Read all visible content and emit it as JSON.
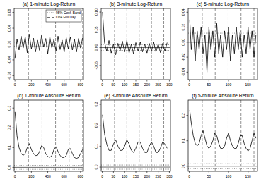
{
  "chart_data": [
    {
      "type": "line",
      "title": "(a) 1-minute Log-Return",
      "color": "#000000",
      "x": [
        1,
        25,
        50,
        75,
        100,
        125,
        150,
        175,
        200,
        225,
        250,
        275,
        300,
        325,
        350,
        375,
        400,
        425,
        450,
        475,
        500,
        525,
        550,
        575,
        600,
        625,
        650,
        675,
        700,
        725,
        750,
        775,
        800,
        825
      ],
      "values": [
        -0.035,
        0.012,
        -0.015,
        0.02,
        -0.01,
        0.018,
        -0.022,
        0.025,
        -0.012,
        0.015,
        -0.02,
        0.01,
        -0.016,
        0.022,
        -0.008,
        0.014,
        -0.024,
        0.018,
        -0.01,
        0.012,
        -0.018,
        0.02,
        -0.014,
        0.01,
        -0.02,
        0.016,
        -0.012,
        0.018,
        -0.015,
        0.012,
        -0.02,
        0.014,
        -0.01,
        0.016
      ],
      "xlim": [
        -10,
        835
      ],
      "ylim": [
        -0.09,
        0.09
      ],
      "xticks": [
        0,
        200,
        400,
        600,
        800
      ],
      "yticks": [
        -0.08,
        -0.04,
        {
          "value": 0,
          "label": "0.00"
        },
        0.04,
        0.08
      ],
      "conf_band": 0.005,
      "day_lines": [
        165,
        330,
        495,
        660,
        825
      ],
      "hline": 0,
      "legend": "top-right",
      "legend_entries": [
        {
          "name": "95% Conf. Band",
          "line_style": "dotted"
        },
        {
          "name": "One Full Day",
          "line_style": "dashed"
        }
      ]
    },
    {
      "type": "line",
      "title": "(b) 3-minute Log-Return",
      "color": "#000000",
      "x": [
        1,
        10,
        20,
        30,
        40,
        50,
        60,
        70,
        80,
        90,
        100,
        110,
        120,
        130,
        140,
        150,
        160,
        170,
        180,
        190,
        200,
        210,
        220,
        230,
        240,
        250,
        260,
        270,
        280,
        290
      ],
      "values": [
        0.1,
        0.015,
        -0.01,
        0.02,
        -0.015,
        0.01,
        -0.02,
        0.012,
        -0.008,
        0.018,
        -0.012,
        0.02,
        -0.015,
        0.01,
        -0.018,
        0.014,
        -0.01,
        0.016,
        -0.012,
        0.01,
        -0.015,
        0.012,
        -0.01,
        0.015,
        -0.012,
        0.01,
        -0.014,
        0.012,
        -0.01,
        0.014
      ],
      "xlim": [
        -5,
        305
      ],
      "ylim": [
        -0.09,
        0.11
      ],
      "xticks": [
        0,
        50,
        100,
        150,
        200,
        250,
        300
      ],
      "yticks": [
        -0.05,
        {
          "value": 0,
          "label": "0.00"
        },
        0.05,
        {
          "value": 0.1,
          "label": "0.10"
        }
      ],
      "conf_band": 0.008,
      "day_lines": [
        55,
        110,
        165,
        220,
        275
      ],
      "hline": 0
    },
    {
      "type": "line",
      "title": "(c) 5-minute Log-Return",
      "color": "#000000",
      "x": [
        1,
        5,
        10,
        15,
        20,
        25,
        30,
        35,
        40,
        45,
        50,
        55,
        60,
        65,
        70,
        75,
        80,
        85,
        90,
        95,
        100,
        105,
        110,
        115,
        120,
        125,
        130,
        135,
        140,
        145,
        150,
        155,
        160,
        165,
        170
      ],
      "values": [
        0.03,
        -0.01,
        0.02,
        -0.025,
        0.015,
        -0.01,
        0.02,
        -0.015,
        0.01,
        -0.04,
        0.02,
        -0.01,
        0.015,
        -0.02,
        0.025,
        -0.015,
        0.01,
        -0.02,
        0.015,
        -0.01,
        0.02,
        -0.025,
        0.01,
        -0.015,
        0.02,
        -0.01,
        0.015,
        -0.02,
        0.01,
        -0.015,
        0.02,
        -0.01,
        0.015,
        -0.02,
        0.01
      ],
      "xlim": [
        -3,
        174
      ],
      "ylim": [
        -0.05,
        0.045
      ],
      "xticks": [
        0,
        50,
        100,
        150
      ],
      "yticks": [
        -0.04,
        -0.02,
        {
          "value": 0,
          "label": "0.00"
        },
        0.02,
        0.04
      ],
      "conf_band": 0.012,
      "day_lines": [
        33,
        66,
        99,
        132,
        165
      ],
      "hline": 0
    },
    {
      "type": "line",
      "title": "(d) 1-minute Absolute Return",
      "color": "#000000",
      "x": [
        1,
        25,
        50,
        75,
        100,
        125,
        150,
        175,
        200,
        225,
        250,
        275,
        300,
        325,
        350,
        375,
        400,
        425,
        450,
        475,
        500,
        525,
        550,
        575,
        600,
        625,
        650,
        675,
        700,
        725,
        750,
        775,
        800,
        825
      ],
      "values": [
        0.28,
        0.16,
        0.1,
        0.07,
        0.06,
        0.07,
        0.1,
        0.12,
        0.09,
        0.07,
        0.06,
        0.06,
        0.08,
        0.11,
        0.1,
        0.07,
        0.055,
        0.05,
        0.06,
        0.09,
        0.105,
        0.08,
        0.06,
        0.05,
        0.05,
        0.06,
        0.09,
        0.095,
        0.07,
        0.05,
        0.045,
        0.05,
        0.07,
        0.09
      ],
      "xlim": [
        -10,
        835
      ],
      "ylim": [
        -0.02,
        0.34
      ],
      "xticks": [
        0,
        200,
        400,
        600,
        800
      ],
      "yticks": [
        {
          "value": 0,
          "label": "0.0"
        },
        0.1,
        0.2,
        0.3
      ],
      "conf_band": 0.01,
      "day_lines": [
        165,
        330,
        495,
        660,
        825
      ],
      "hline": 0
    },
    {
      "type": "line",
      "title": "(e) 3-minute Absolute Return",
      "color": "#000000",
      "x": [
        1,
        10,
        20,
        30,
        40,
        50,
        60,
        70,
        80,
        90,
        100,
        110,
        120,
        130,
        140,
        150,
        160,
        170,
        180,
        190,
        200,
        210,
        220,
        230,
        240,
        250,
        260,
        270,
        280,
        290
      ],
      "values": [
        0.25,
        0.16,
        0.11,
        0.08,
        0.08,
        0.11,
        0.13,
        0.1,
        0.08,
        0.08,
        0.1,
        0.13,
        0.11,
        0.08,
        0.07,
        0.09,
        0.12,
        0.12,
        0.09,
        0.07,
        0.07,
        0.1,
        0.12,
        0.1,
        0.07,
        0.07,
        0.09,
        0.12,
        0.11,
        0.09
      ],
      "xlim": [
        -5,
        305
      ],
      "ylim": [
        -0.02,
        0.32
      ],
      "xticks": [
        0,
        50,
        100,
        150,
        200,
        250,
        300
      ],
      "yticks": [
        {
          "value": 0,
          "label": "0.0"
        },
        0.1,
        0.2,
        0.3
      ],
      "conf_band": 0.01,
      "day_lines": [
        55,
        110,
        165,
        220,
        275
      ],
      "hline": 0
    },
    {
      "type": "line",
      "title": "(f) 5-minute Absolute Return",
      "color": "#000000",
      "x": [
        1,
        5,
        10,
        15,
        20,
        25,
        30,
        35,
        40,
        45,
        50,
        55,
        60,
        65,
        70,
        75,
        80,
        85,
        90,
        95,
        100,
        105,
        110,
        115,
        120,
        125,
        130,
        135,
        140,
        145,
        150,
        155,
        160,
        165,
        170
      ],
      "values": [
        0.22,
        0.17,
        0.12,
        0.09,
        0.08,
        0.09,
        0.12,
        0.14,
        0.11,
        0.08,
        0.07,
        0.08,
        0.1,
        0.13,
        0.12,
        0.09,
        0.07,
        0.07,
        0.08,
        0.11,
        0.13,
        0.1,
        0.08,
        0.07,
        0.07,
        0.09,
        0.12,
        0.12,
        0.09,
        0.07,
        0.06,
        0.07,
        0.1,
        0.13,
        0.11
      ],
      "xlim": [
        -3,
        174
      ],
      "ylim": [
        -0.02,
        0.26
      ],
      "xticks": [
        0,
        50,
        100,
        150
      ],
      "yticks": [
        {
          "value": 0,
          "label": "0.0"
        },
        0.1,
        0.2
      ],
      "conf_band": 0.01,
      "day_lines": [
        33,
        66,
        99,
        132,
        165
      ],
      "hline": 0
    }
  ]
}
